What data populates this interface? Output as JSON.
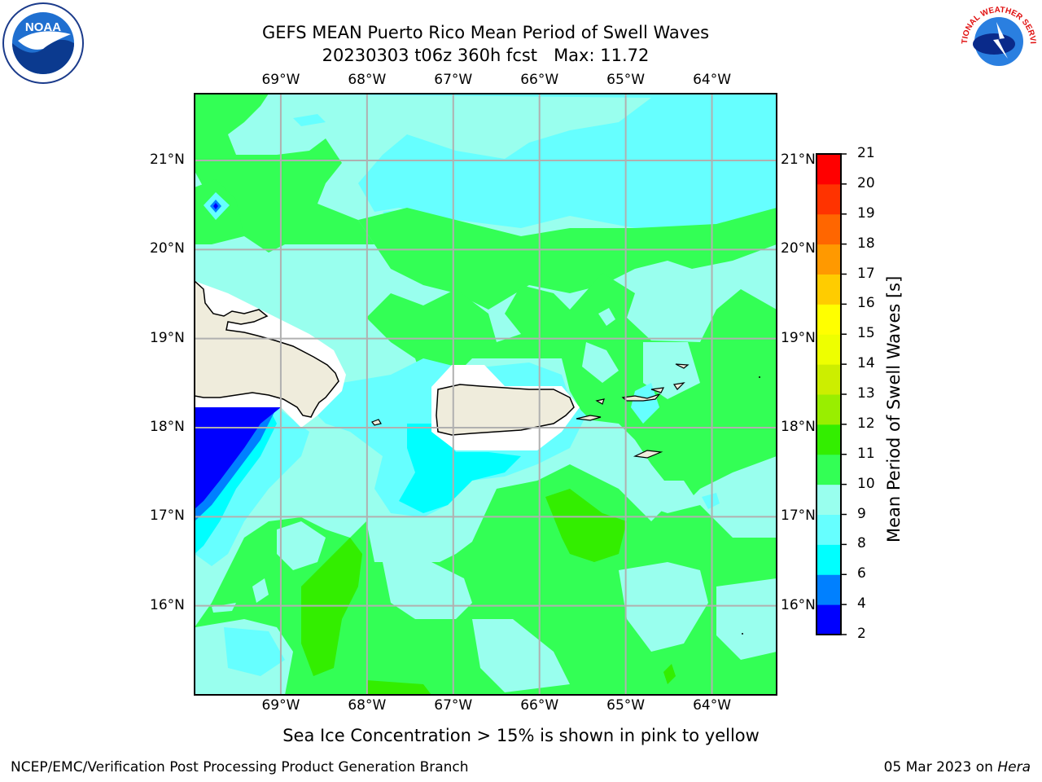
{
  "title": {
    "line1": "GEFS MEAN Puerto Rico Mean Period of Swell Waves",
    "line2": "20230303 t06z 360h fcst   Max: 11.72"
  },
  "map": {
    "lon_labels": [
      "69°W",
      "68°W",
      "67°W",
      "66°W",
      "65°W",
      "64°W"
    ],
    "lat_labels": [
      "21°N",
      "20°N",
      "19°N",
      "18°N",
      "17°N",
      "16°N"
    ],
    "extent": {
      "lon_min": -70.0,
      "lon_max": -63.25,
      "lat_min": 15.0,
      "lat_max": 21.75
    },
    "land_color": "#efecdc",
    "coast_color": "#000000",
    "grid_color": "#b0b0b0"
  },
  "colorbar": {
    "label": "Mean Period of Swell Waves [s]",
    "ticks": [
      "2",
      "4",
      "6",
      "8",
      "9",
      "10",
      "11",
      "12",
      "13",
      "14",
      "15",
      "16",
      "17",
      "18",
      "19",
      "20",
      "21"
    ],
    "colors": [
      "#0000ff",
      "#0080ff",
      "#00ffff",
      "#66ffff",
      "#99ffee",
      "#33ff55",
      "#33ee00",
      "#99ee00",
      "#ccee00",
      "#eeff00",
      "#ffff00",
      "#ffcc00",
      "#ff9900",
      "#ff6600",
      "#ff3300",
      "#ff0000"
    ]
  },
  "note": "Sea Ice Concentration > 15% is shown in pink to yellow",
  "footer": {
    "left": "NCEP/EMC/Verification Post Processing Product Generation Branch",
    "right_date": "05 Mar 2023 on ",
    "right_machine": "Hera"
  },
  "logos": {
    "noaa": "NOAA",
    "nws": "NATIONAL WEATHER SERVICE"
  }
}
